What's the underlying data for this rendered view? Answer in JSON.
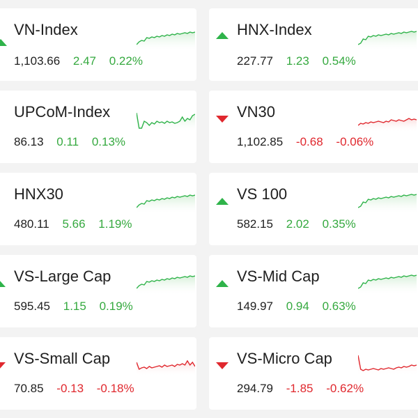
{
  "colors": {
    "up": "#2fb34a",
    "down": "#e0282e",
    "up_fill": "#d6efd8",
    "down_fill": "#fbdcdc"
  },
  "indices": [
    {
      "name": "VN-Index",
      "value": "1,103.66",
      "change": "2.47",
      "pct": "0.22%",
      "dir": "up"
    },
    {
      "name": "HNX-Index",
      "value": "227.77",
      "change": "1.23",
      "pct": "0.54%",
      "dir": "up"
    },
    {
      "name": "UPCoM-Index",
      "value": "86.13",
      "change": "0.11",
      "pct": "0.13%",
      "dir": "up"
    },
    {
      "name": "VN30",
      "value": "1,102.85",
      "change": "-0.68",
      "pct": "-0.06%",
      "dir": "down"
    },
    {
      "name": "HNX30",
      "value": "480.11",
      "change": "5.66",
      "pct": "1.19%",
      "dir": "up"
    },
    {
      "name": "VS 100",
      "value": "582.15",
      "change": "2.02",
      "pct": "0.35%",
      "dir": "up"
    },
    {
      "name": "VS-Large Cap",
      "value": "595.45",
      "change": "1.15",
      "pct": "0.19%",
      "dir": "up"
    },
    {
      "name": "VS-Mid Cap",
      "value": "149.97",
      "change": "0.94",
      "pct": "0.63%",
      "dir": "up"
    },
    {
      "name": "VS-Small Cap",
      "value": "70.85",
      "change": "-0.13",
      "pct": "-0.18%",
      "dir": "down"
    },
    {
      "name": "VS-Micro Cap",
      "value": "294.79",
      "change": "-1.85",
      "pct": "-0.62%",
      "dir": "down"
    }
  ]
}
